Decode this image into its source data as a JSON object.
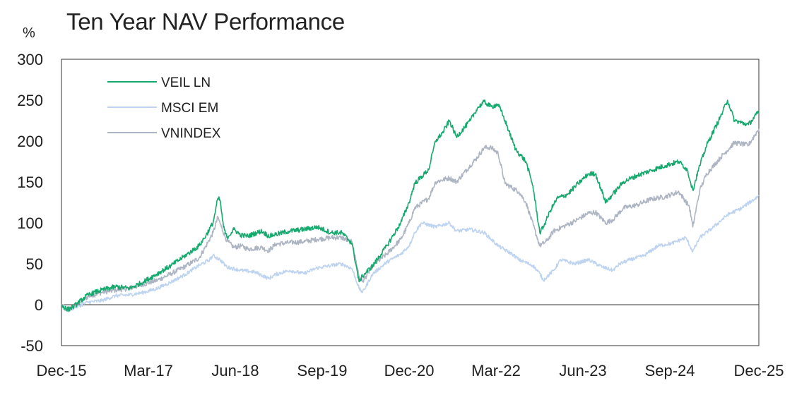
{
  "chart_data": {
    "type": "line",
    "title": "Ten Year NAV Performance",
    "ylabel": "%",
    "xlabel": "",
    "ylim": [
      -50,
      300
    ],
    "yticks": [
      -50,
      0,
      50,
      100,
      150,
      200,
      250,
      300
    ],
    "x_start": 2015.92,
    "x_end": 2025.95,
    "x_tick_labels": [
      "Dec-15",
      "Mar-17",
      "Jun-18",
      "Sep-19",
      "Dec-20",
      "Mar-22",
      "Jun-23",
      "Sep-24",
      "Dec-25"
    ],
    "x_tick_positions": [
      2015.92,
      2017.17,
      2018.42,
      2019.67,
      2020.92,
      2022.17,
      2023.42,
      2024.67,
      2025.95
    ],
    "grid": false,
    "legend_position": "top-left",
    "series": [
      {
        "name": "VNINDEX",
        "color": "#adb4c2",
        "points": [
          [
            2015.92,
            0
          ],
          [
            2016.0,
            -8
          ],
          [
            2016.1,
            -3
          ],
          [
            2016.3,
            10
          ],
          [
            2016.5,
            15
          ],
          [
            2016.7,
            18
          ],
          [
            2016.9,
            20
          ],
          [
            2017.1,
            25
          ],
          [
            2017.3,
            30
          ],
          [
            2017.5,
            38
          ],
          [
            2017.7,
            47
          ],
          [
            2017.9,
            57
          ],
          [
            2018.0,
            72
          ],
          [
            2018.1,
            88
          ],
          [
            2018.17,
            107
          ],
          [
            2018.22,
            95
          ],
          [
            2018.3,
            78
          ],
          [
            2018.4,
            70
          ],
          [
            2018.5,
            72
          ],
          [
            2018.6,
            68
          ],
          [
            2018.8,
            70
          ],
          [
            2018.9,
            66
          ],
          [
            2019.0,
            74
          ],
          [
            2019.2,
            76
          ],
          [
            2019.4,
            77
          ],
          [
            2019.6,
            80
          ],
          [
            2019.8,
            82
          ],
          [
            2019.95,
            82
          ],
          [
            2020.1,
            76
          ],
          [
            2020.2,
            35
          ],
          [
            2020.25,
            28
          ],
          [
            2020.4,
            48
          ],
          [
            2020.6,
            62
          ],
          [
            2020.8,
            80
          ],
          [
            2020.92,
            100
          ],
          [
            2021.0,
            118
          ],
          [
            2021.2,
            130
          ],
          [
            2021.3,
            150
          ],
          [
            2021.5,
            155
          ],
          [
            2021.6,
            150
          ],
          [
            2021.8,
            170
          ],
          [
            2021.9,
            180
          ],
          [
            2022.0,
            192
          ],
          [
            2022.1,
            192
          ],
          [
            2022.2,
            185
          ],
          [
            2022.3,
            148
          ],
          [
            2022.5,
            138
          ],
          [
            2022.6,
            125
          ],
          [
            2022.75,
            85
          ],
          [
            2022.8,
            72
          ],
          [
            2022.9,
            78
          ],
          [
            2023.0,
            90
          ],
          [
            2023.15,
            96
          ],
          [
            2023.3,
            102
          ],
          [
            2023.5,
            112
          ],
          [
            2023.6,
            113
          ],
          [
            2023.75,
            100
          ],
          [
            2023.85,
            104
          ],
          [
            2024.0,
            118
          ],
          [
            2024.2,
            122
          ],
          [
            2024.4,
            129
          ],
          [
            2024.6,
            132
          ],
          [
            2024.8,
            138
          ],
          [
            2024.95,
            120
          ],
          [
            2025.0,
            95
          ],
          [
            2025.1,
            140
          ],
          [
            2025.2,
            160
          ],
          [
            2025.4,
            180
          ],
          [
            2025.6,
            198
          ],
          [
            2025.8,
            195
          ],
          [
            2025.95,
            215
          ]
        ]
      },
      {
        "name": "MSCI EM",
        "color": "#bed3f0",
        "points": [
          [
            2015.92,
            0
          ],
          [
            2016.0,
            -6
          ],
          [
            2016.1,
            -4
          ],
          [
            2016.3,
            3
          ],
          [
            2016.5,
            5
          ],
          [
            2016.7,
            11
          ],
          [
            2016.9,
            12
          ],
          [
            2017.1,
            15
          ],
          [
            2017.3,
            20
          ],
          [
            2017.5,
            28
          ],
          [
            2017.7,
            37
          ],
          [
            2017.9,
            48
          ],
          [
            2018.05,
            55
          ],
          [
            2018.1,
            60
          ],
          [
            2018.2,
            55
          ],
          [
            2018.3,
            46
          ],
          [
            2018.5,
            42
          ],
          [
            2018.7,
            40
          ],
          [
            2018.9,
            32
          ],
          [
            2019.0,
            37
          ],
          [
            2019.2,
            42
          ],
          [
            2019.4,
            38
          ],
          [
            2019.6,
            45
          ],
          [
            2019.8,
            48
          ],
          [
            2019.95,
            50
          ],
          [
            2020.1,
            44
          ],
          [
            2020.2,
            20
          ],
          [
            2020.25,
            15
          ],
          [
            2020.4,
            38
          ],
          [
            2020.6,
            52
          ],
          [
            2020.8,
            62
          ],
          [
            2020.92,
            72
          ],
          [
            2021.0,
            88
          ],
          [
            2021.1,
            100
          ],
          [
            2021.3,
            95
          ],
          [
            2021.5,
            100
          ],
          [
            2021.6,
            90
          ],
          [
            2021.8,
            92
          ],
          [
            2022.0,
            88
          ],
          [
            2022.2,
            72
          ],
          [
            2022.4,
            62
          ],
          [
            2022.5,
            55
          ],
          [
            2022.7,
            48
          ],
          [
            2022.8,
            38
          ],
          [
            2022.85,
            30
          ],
          [
            2023.0,
            42
          ],
          [
            2023.1,
            55
          ],
          [
            2023.3,
            50
          ],
          [
            2023.5,
            55
          ],
          [
            2023.7,
            46
          ],
          [
            2023.85,
            42
          ],
          [
            2023.95,
            50
          ],
          [
            2024.1,
            55
          ],
          [
            2024.3,
            60
          ],
          [
            2024.5,
            72
          ],
          [
            2024.7,
            75
          ],
          [
            2024.9,
            82
          ],
          [
            2025.0,
            65
          ],
          [
            2025.1,
            82
          ],
          [
            2025.3,
            95
          ],
          [
            2025.5,
            110
          ],
          [
            2025.7,
            118
          ],
          [
            2025.95,
            133
          ]
        ]
      },
      {
        "name": "VEIL LN",
        "color": "#16a96e",
        "points": [
          [
            2015.92,
            0
          ],
          [
            2016.0,
            -6
          ],
          [
            2016.1,
            -2
          ],
          [
            2016.3,
            12
          ],
          [
            2016.5,
            18
          ],
          [
            2016.7,
            22
          ],
          [
            2016.9,
            20
          ],
          [
            2017.1,
            28
          ],
          [
            2017.3,
            38
          ],
          [
            2017.5,
            48
          ],
          [
            2017.7,
            60
          ],
          [
            2017.9,
            72
          ],
          [
            2018.0,
            85
          ],
          [
            2018.1,
            100
          ],
          [
            2018.17,
            130
          ],
          [
            2018.2,
            128
          ],
          [
            2018.25,
            95
          ],
          [
            2018.3,
            82
          ],
          [
            2018.4,
            92
          ],
          [
            2018.5,
            85
          ],
          [
            2018.6,
            84
          ],
          [
            2018.8,
            90
          ],
          [
            2018.9,
            84
          ],
          [
            2019.0,
            86
          ],
          [
            2019.2,
            90
          ],
          [
            2019.4,
            92
          ],
          [
            2019.6,
            95
          ],
          [
            2019.8,
            88
          ],
          [
            2019.95,
            88
          ],
          [
            2020.1,
            75
          ],
          [
            2020.2,
            28
          ],
          [
            2020.25,
            35
          ],
          [
            2020.4,
            48
          ],
          [
            2020.6,
            72
          ],
          [
            2020.8,
            100
          ],
          [
            2020.92,
            125
          ],
          [
            2021.0,
            148
          ],
          [
            2021.2,
            165
          ],
          [
            2021.3,
            200
          ],
          [
            2021.4,
            210
          ],
          [
            2021.5,
            225
          ],
          [
            2021.6,
            205
          ],
          [
            2021.8,
            225
          ],
          [
            2021.9,
            240
          ],
          [
            2022.0,
            248
          ],
          [
            2022.1,
            242
          ],
          [
            2022.2,
            245
          ],
          [
            2022.3,
            225
          ],
          [
            2022.45,
            190
          ],
          [
            2022.6,
            175
          ],
          [
            2022.7,
            145
          ],
          [
            2022.8,
            88
          ],
          [
            2022.85,
            95
          ],
          [
            2022.95,
            115
          ],
          [
            2023.05,
            130
          ],
          [
            2023.2,
            135
          ],
          [
            2023.35,
            148
          ],
          [
            2023.5,
            160
          ],
          [
            2023.6,
            160
          ],
          [
            2023.75,
            125
          ],
          [
            2023.85,
            135
          ],
          [
            2024.0,
            150
          ],
          [
            2024.2,
            158
          ],
          [
            2024.4,
            164
          ],
          [
            2024.6,
            170
          ],
          [
            2024.8,
            175
          ],
          [
            2024.92,
            165
          ],
          [
            2025.0,
            140
          ],
          [
            2025.1,
            170
          ],
          [
            2025.2,
            195
          ],
          [
            2025.4,
            230
          ],
          [
            2025.5,
            250
          ],
          [
            2025.6,
            225
          ],
          [
            2025.8,
            220
          ],
          [
            2025.95,
            236
          ]
        ]
      }
    ]
  },
  "legend": [
    {
      "label": "VEIL LN",
      "color": "#16a96e"
    },
    {
      "label": "MSCI EM",
      "color": "#bed3f0"
    },
    {
      "label": "VNINDEX",
      "color": "#adb4c2"
    }
  ]
}
